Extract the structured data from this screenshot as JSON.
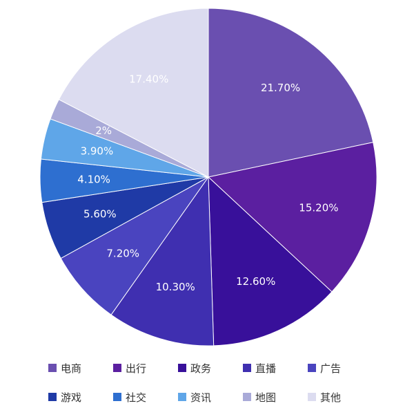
{
  "chart_data": {
    "type": "pie",
    "title": "",
    "start_angle_deg": 0,
    "direction": "clockwise",
    "legend_position": "bottom",
    "slices": [
      {
        "name": "电商",
        "value": 21.7,
        "label": "21.70%",
        "color": "#6a4fb0"
      },
      {
        "name": "出行",
        "value": 15.2,
        "label": "15.20%",
        "color": "#5b1fa0"
      },
      {
        "name": "政务",
        "value": 12.6,
        "label": "12.60%",
        "color": "#38109a"
      },
      {
        "name": "直播",
        "value": 10.3,
        "label": "10.30%",
        "color": "#3f2fb0"
      },
      {
        "name": "广告",
        "value": 7.2,
        "label": "7.20%",
        "color": "#4a44bf"
      },
      {
        "name": "游戏",
        "value": 5.6,
        "label": "5.60%",
        "color": "#1f3aa6"
      },
      {
        "name": "社交",
        "value": 4.1,
        "label": "4.10%",
        "color": "#2e6fd0"
      },
      {
        "name": "资讯",
        "value": 3.9,
        "label": "3.90%",
        "color": "#5fa6e8"
      },
      {
        "name": "地图",
        "value": 2.0,
        "label": "2%",
        "color": "#a9aad8"
      },
      {
        "name": "其他",
        "value": 17.4,
        "label": "17.40%",
        "color": "#dcdcf0"
      }
    ]
  }
}
